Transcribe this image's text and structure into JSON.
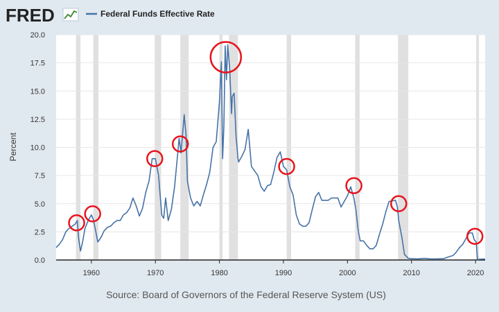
{
  "brand": {
    "logo_text": "FRED",
    "logo_icon": "line-chart-icon"
  },
  "legend": {
    "label": "Federal Funds Effective Rate",
    "color": "#4572a7"
  },
  "source": "Source: Board of Governors of the Federal Reserve System (US)",
  "colors": {
    "background": "#e1e9f0",
    "plot": "#ffffff",
    "line": "#4572a7",
    "recession": "#e0e0e0",
    "circle": "#e8141c"
  },
  "chart_data": {
    "type": "line",
    "title": "",
    "xlabel": "",
    "ylabel": "Percent",
    "xlim": [
      1954.5,
      2021.5
    ],
    "ylim": [
      0,
      20
    ],
    "x_ticks": [
      1960,
      1970,
      1980,
      1990,
      2000,
      2010,
      2020
    ],
    "y_ticks": [
      0,
      2.5,
      5,
      7.5,
      10,
      12.5,
      15,
      17.5,
      20
    ],
    "y_tick_labels": [
      "0.0",
      "2.5",
      "5.0",
      "7.5",
      "10.0",
      "12.5",
      "15.0",
      "17.5",
      "20.0"
    ],
    "grid": true,
    "recessions": [
      [
        1957.6,
        1958.3
      ],
      [
        1960.3,
        1961.1
      ],
      [
        1969.9,
        1970.9
      ],
      [
        1973.9,
        1975.2
      ],
      [
        1980.0,
        1980.5
      ],
      [
        1981.5,
        1982.9
      ],
      [
        1990.5,
        1991.2
      ],
      [
        2001.2,
        2001.9
      ],
      [
        2007.9,
        2009.5
      ],
      [
        2020.1,
        2020.4
      ]
    ],
    "series": [
      {
        "name": "Federal Funds Effective Rate",
        "points": [
          [
            1954.5,
            1.1
          ],
          [
            1955.0,
            1.4
          ],
          [
            1955.5,
            1.8
          ],
          [
            1956.0,
            2.5
          ],
          [
            1956.5,
            2.8
          ],
          [
            1957.0,
            3.0
          ],
          [
            1957.5,
            3.2
          ],
          [
            1957.8,
            3.5
          ],
          [
            1958.0,
            2.0
          ],
          [
            1958.3,
            0.8
          ],
          [
            1958.6,
            1.5
          ],
          [
            1959.0,
            2.8
          ],
          [
            1959.5,
            3.5
          ],
          [
            1960.0,
            4.0
          ],
          [
            1960.3,
            3.6
          ],
          [
            1960.7,
            2.5
          ],
          [
            1961.0,
            1.6
          ],
          [
            1961.5,
            2.0
          ],
          [
            1962.0,
            2.6
          ],
          [
            1962.5,
            2.9
          ],
          [
            1963.0,
            3.0
          ],
          [
            1963.5,
            3.3
          ],
          [
            1964.0,
            3.5
          ],
          [
            1964.5,
            3.5
          ],
          [
            1965.0,
            4.0
          ],
          [
            1965.5,
            4.2
          ],
          [
            1966.0,
            4.6
          ],
          [
            1966.5,
            5.5
          ],
          [
            1967.0,
            4.8
          ],
          [
            1967.5,
            3.9
          ],
          [
            1968.0,
            4.6
          ],
          [
            1968.5,
            6.0
          ],
          [
            1969.0,
            7.0
          ],
          [
            1969.5,
            9.0
          ],
          [
            1970.0,
            9.0
          ],
          [
            1970.5,
            7.5
          ],
          [
            1971.0,
            4.0
          ],
          [
            1971.3,
            3.7
          ],
          [
            1971.6,
            5.5
          ],
          [
            1972.0,
            3.5
          ],
          [
            1972.5,
            4.5
          ],
          [
            1973.0,
            6.5
          ],
          [
            1973.5,
            9.5
          ],
          [
            1973.7,
            10.8
          ],
          [
            1974.0,
            9.5
          ],
          [
            1974.3,
            11.5
          ],
          [
            1974.5,
            12.9
          ],
          [
            1974.8,
            11.0
          ],
          [
            1975.0,
            7.0
          ],
          [
            1975.5,
            5.5
          ],
          [
            1976.0,
            4.8
          ],
          [
            1976.5,
            5.2
          ],
          [
            1977.0,
            4.8
          ],
          [
            1977.5,
            5.8
          ],
          [
            1978.0,
            6.7
          ],
          [
            1978.5,
            7.8
          ],
          [
            1979.0,
            10.0
          ],
          [
            1979.5,
            10.5
          ],
          [
            1980.0,
            14.0
          ],
          [
            1980.3,
            17.6
          ],
          [
            1980.5,
            9.0
          ],
          [
            1980.7,
            12.0
          ],
          [
            1980.9,
            19.0
          ],
          [
            1981.1,
            16.0
          ],
          [
            1981.3,
            19.1
          ],
          [
            1981.6,
            17.0
          ],
          [
            1981.9,
            13.0
          ],
          [
            1982.0,
            14.5
          ],
          [
            1982.3,
            14.8
          ],
          [
            1982.6,
            11.0
          ],
          [
            1982.9,
            9.0
          ],
          [
            1983.0,
            8.7
          ],
          [
            1983.5,
            9.2
          ],
          [
            1984.0,
            9.8
          ],
          [
            1984.5,
            11.6
          ],
          [
            1985.0,
            8.3
          ],
          [
            1985.5,
            7.9
          ],
          [
            1986.0,
            7.5
          ],
          [
            1986.5,
            6.5
          ],
          [
            1987.0,
            6.1
          ],
          [
            1987.5,
            6.6
          ],
          [
            1988.0,
            6.7
          ],
          [
            1988.5,
            7.8
          ],
          [
            1989.0,
            9.1
          ],
          [
            1989.5,
            9.6
          ],
          [
            1990.0,
            8.3
          ],
          [
            1990.5,
            8.0
          ],
          [
            1991.0,
            6.5
          ],
          [
            1991.5,
            5.8
          ],
          [
            1992.0,
            4.0
          ],
          [
            1992.5,
            3.2
          ],
          [
            1993.0,
            3.0
          ],
          [
            1993.5,
            3.0
          ],
          [
            1994.0,
            3.3
          ],
          [
            1994.5,
            4.5
          ],
          [
            1995.0,
            5.6
          ],
          [
            1995.5,
            6.0
          ],
          [
            1996.0,
            5.3
          ],
          [
            1996.5,
            5.3
          ],
          [
            1997.0,
            5.3
          ],
          [
            1997.5,
            5.5
          ],
          [
            1998.0,
            5.5
          ],
          [
            1998.5,
            5.5
          ],
          [
            1999.0,
            4.7
          ],
          [
            1999.5,
            5.2
          ],
          [
            2000.0,
            5.7
          ],
          [
            2000.5,
            6.5
          ],
          [
            2001.0,
            5.5
          ],
          [
            2001.3,
            4.5
          ],
          [
            2001.7,
            2.5
          ],
          [
            2002.0,
            1.7
          ],
          [
            2002.5,
            1.7
          ],
          [
            2003.0,
            1.3
          ],
          [
            2003.5,
            1.0
          ],
          [
            2004.0,
            1.0
          ],
          [
            2004.5,
            1.3
          ],
          [
            2005.0,
            2.3
          ],
          [
            2005.5,
            3.2
          ],
          [
            2006.0,
            4.3
          ],
          [
            2006.5,
            5.2
          ],
          [
            2007.0,
            5.25
          ],
          [
            2007.5,
            5.3
          ],
          [
            2007.8,
            4.7
          ],
          [
            2008.0,
            3.5
          ],
          [
            2008.5,
            2.0
          ],
          [
            2008.9,
            0.5
          ],
          [
            2009.5,
            0.15
          ],
          [
            2010.0,
            0.12
          ],
          [
            2011.0,
            0.1
          ],
          [
            2012.0,
            0.15
          ],
          [
            2013.0,
            0.1
          ],
          [
            2014.0,
            0.1
          ],
          [
            2015.0,
            0.12
          ],
          [
            2015.9,
            0.3
          ],
          [
            2016.5,
            0.4
          ],
          [
            2017.0,
            0.7
          ],
          [
            2017.5,
            1.1
          ],
          [
            2018.0,
            1.4
          ],
          [
            2018.5,
            1.9
          ],
          [
            2019.0,
            2.4
          ],
          [
            2019.5,
            2.4
          ],
          [
            2019.8,
            1.8
          ],
          [
            2020.1,
            1.6
          ],
          [
            2020.3,
            0.05
          ],
          [
            2021.0,
            0.08
          ],
          [
            2021.5,
            0.08
          ]
        ]
      }
    ],
    "annotations": [
      {
        "type": "circle",
        "x": 1957.7,
        "y": 3.3
      },
      {
        "type": "circle",
        "x": 1960.2,
        "y": 4.1
      },
      {
        "type": "circle",
        "x": 1969.9,
        "y": 9.0
      },
      {
        "type": "circle",
        "x": 1973.9,
        "y": 10.3
      },
      {
        "type": "circle",
        "x": 1981.0,
        "y": 18.0
      },
      {
        "type": "circle",
        "x": 1990.5,
        "y": 8.3
      },
      {
        "type": "circle",
        "x": 2001.0,
        "y": 6.6
      },
      {
        "type": "circle",
        "x": 2008.0,
        "y": 5.0
      },
      {
        "type": "circle",
        "x": 2019.9,
        "y": 2.1
      }
    ]
  }
}
